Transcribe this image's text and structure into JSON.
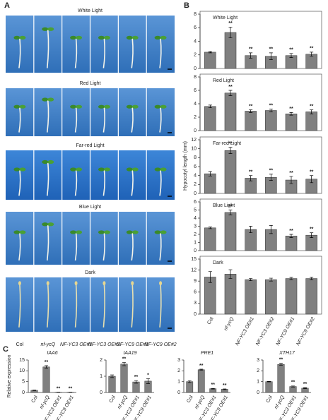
{
  "panel_labels": [
    "A",
    "B",
    "C"
  ],
  "panel_a": {
    "conditions": [
      "White Light",
      "Red Light",
      "Far-red Light",
      "Blue Light",
      "Dark"
    ],
    "genotypes": [
      "Col",
      "nf-ycQ",
      "NF-YC3 OE#1",
      "NF-YC3 OE#2",
      "NF-YC9 OE#1",
      "NF-YC9 OE#2"
    ]
  },
  "chart_data": [
    {
      "type": "bar",
      "ylabel": "Hypocotyl length (mm)",
      "color": "#808080",
      "categories": [
        "Col",
        "nf-ycQ",
        "NF-YC3 OE#1",
        "NF-YC3 OE#2",
        "NF-YC9 OE#1",
        "NF-YC9 OE#2"
      ],
      "subplots": [
        {
          "title": "White Light",
          "ylim": [
            0,
            8
          ],
          "yticks": [
            0,
            2,
            4,
            6,
            8
          ],
          "values": [
            2.4,
            5.3,
            1.9,
            1.8,
            1.9,
            2.1
          ],
          "errors": [
            0.1,
            0.8,
            0.4,
            0.5,
            0.3,
            0.3
          ],
          "stars": [
            null,
            "**",
            "**",
            "**",
            "**",
            "**"
          ]
        },
        {
          "title": "Red Light",
          "ylim": [
            0,
            8
          ],
          "yticks": [
            0,
            2,
            4,
            6,
            8
          ],
          "values": [
            3.6,
            5.6,
            2.9,
            3.0,
            2.5,
            2.8
          ],
          "errors": [
            0.2,
            0.4,
            0.2,
            0.2,
            0.2,
            0.3
          ],
          "stars": [
            null,
            "**",
            "**",
            "**",
            "**",
            "**"
          ]
        },
        {
          "title": "Far-red Light",
          "ylim": [
            0,
            12
          ],
          "yticks": [
            0,
            2,
            4,
            6,
            8,
            10,
            12
          ],
          "values": [
            4.4,
            9.6,
            3.4,
            3.6,
            3.0,
            3.2
          ],
          "errors": [
            0.5,
            0.7,
            0.6,
            0.7,
            0.8,
            0.8
          ],
          "stars": [
            null,
            "**",
            "**",
            "**",
            "**",
            "**"
          ]
        },
        {
          "title": "Blue Light",
          "ylim": [
            0,
            6
          ],
          "yticks": [
            0,
            1,
            2,
            3,
            4,
            5,
            6
          ],
          "values": [
            2.8,
            4.7,
            2.6,
            2.6,
            1.8,
            1.9
          ],
          "errors": [
            0.1,
            0.3,
            0.4,
            0.5,
            0.2,
            0.3
          ],
          "stars": [
            null,
            "**",
            null,
            null,
            "**",
            "**"
          ]
        },
        {
          "title": "Dark",
          "ylim": [
            0,
            15
          ],
          "yticks": [
            0,
            3,
            6,
            9,
            12,
            15
          ],
          "values": [
            10.1,
            10.9,
            9.4,
            9.4,
            9.7,
            9.7
          ],
          "errors": [
            1.5,
            1.2,
            0.3,
            0.4,
            0.3,
            0.3
          ],
          "stars": [
            null,
            null,
            null,
            null,
            null,
            null
          ]
        }
      ]
    },
    {
      "type": "bar",
      "ylabel": "Relative expression",
      "color": "#808080",
      "subplots": [
        {
          "title": "IAA6",
          "categories": [
            "Col",
            "nf-ycQ",
            "NF-YC3 OE#1",
            "NF-YC9 OE#1"
          ],
          "ylim": [
            0,
            15
          ],
          "yticks": [
            0,
            5,
            10,
            15
          ],
          "values": [
            1,
            11.8,
            0.1,
            0.1
          ],
          "errors": [
            0.1,
            0.6,
            0.05,
            0.05
          ],
          "stars": [
            null,
            "**",
            "**",
            "**"
          ]
        },
        {
          "title": "IAA19",
          "categories": [
            "Col",
            "nf-ycQ",
            "NF-YC3 OE#1",
            "NF-YC9 OE#1"
          ],
          "ylim": [
            0,
            2
          ],
          "yticks": [
            0,
            1,
            2
          ],
          "values": [
            1,
            1.75,
            0.65,
            0.7
          ],
          "errors": [
            0.08,
            0.1,
            0.08,
            0.15
          ],
          "stars": [
            null,
            "**",
            "**",
            "*"
          ]
        },
        {
          "title": "PRE1",
          "categories": [
            "Col",
            "nf-ycQ",
            "NF-YC3 OE#1",
            "NF-YC9 OE#1"
          ],
          "ylim": [
            0,
            3
          ],
          "yticks": [
            0,
            1,
            2,
            3
          ],
          "values": [
            1,
            2.1,
            0.35,
            0.3
          ],
          "errors": [
            0.08,
            0.05,
            0.03,
            0.03
          ],
          "stars": [
            null,
            "**",
            "**",
            "**"
          ]
        },
        {
          "title": "XTH17",
          "categories": [
            "Col",
            "nf-ycQ",
            "NF-YC3 OE#1",
            "NF-YC9 OE#1"
          ],
          "ylim": [
            0,
            3
          ],
          "yticks": [
            0,
            1,
            2,
            3
          ],
          "values": [
            1,
            2.6,
            0.55,
            0.4
          ],
          "errors": [
            0.02,
            0.1,
            0.05,
            0.05
          ],
          "stars": [
            null,
            "**",
            "**",
            "**"
          ]
        }
      ]
    }
  ]
}
